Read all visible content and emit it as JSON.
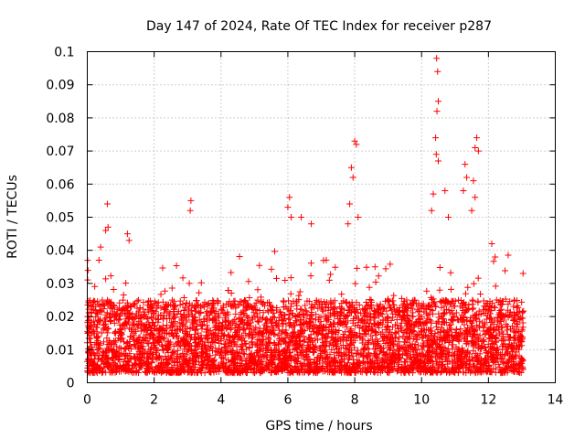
{
  "chart_data": {
    "type": "scatter",
    "title": "Day 147 of 2024, Rate Of TEC Index for receiver p287",
    "xlabel": "GPS time / hours",
    "ylabel": "ROTI / TECUs",
    "xlim": [
      0,
      14
    ],
    "ylim": [
      0,
      0.1
    ],
    "x_ticks": [
      0,
      2,
      4,
      6,
      8,
      10,
      12,
      14
    ],
    "x_tick_labels": [
      "0",
      "2",
      "4",
      "6",
      "8",
      "10",
      "12",
      "14"
    ],
    "y_ticks": [
      0,
      0.01,
      0.02,
      0.03,
      0.04,
      0.05,
      0.06,
      0.07,
      0.08,
      0.09,
      0.1
    ],
    "y_tick_labels": [
      "0",
      "0.01",
      "0.02",
      "0.03",
      "0.04",
      "0.05",
      "0.06",
      "0.07",
      "0.08",
      "0.09",
      "0.1"
    ],
    "grid": true,
    "marker": "+",
    "color": "#ff0000",
    "series": [
      {
        "name": "ROTI",
        "x_range": [
          0.0,
          13.05
        ],
        "bulk_band": [
          0.003,
          0.025
        ],
        "notable_points": [
          {
            "x": 0.6,
            "y": 0.054
          },
          {
            "x": 0.62,
            "y": 0.047
          },
          {
            "x": 0.55,
            "y": 0.046
          },
          {
            "x": 0.4,
            "y": 0.041
          },
          {
            "x": 0.35,
            "y": 0.037
          },
          {
            "x": 1.2,
            "y": 0.045
          },
          {
            "x": 1.25,
            "y": 0.043
          },
          {
            "x": 3.1,
            "y": 0.055
          },
          {
            "x": 3.08,
            "y": 0.052
          },
          {
            "x": 6.05,
            "y": 0.056
          },
          {
            "x": 6.0,
            "y": 0.053
          },
          {
            "x": 6.1,
            "y": 0.05
          },
          {
            "x": 6.4,
            "y": 0.05
          },
          {
            "x": 6.7,
            "y": 0.048
          },
          {
            "x": 7.9,
            "y": 0.065
          },
          {
            "x": 7.95,
            "y": 0.062
          },
          {
            "x": 8.0,
            "y": 0.073
          },
          {
            "x": 8.05,
            "y": 0.072
          },
          {
            "x": 7.85,
            "y": 0.054
          },
          {
            "x": 8.1,
            "y": 0.05
          },
          {
            "x": 7.8,
            "y": 0.048
          },
          {
            "x": 10.45,
            "y": 0.098
          },
          {
            "x": 10.48,
            "y": 0.094
          },
          {
            "x": 10.5,
            "y": 0.085
          },
          {
            "x": 10.46,
            "y": 0.082
          },
          {
            "x": 10.42,
            "y": 0.074
          },
          {
            "x": 10.44,
            "y": 0.069
          },
          {
            "x": 10.5,
            "y": 0.067
          },
          {
            "x": 10.35,
            "y": 0.057
          },
          {
            "x": 10.3,
            "y": 0.052
          },
          {
            "x": 10.7,
            "y": 0.058
          },
          {
            "x": 10.8,
            "y": 0.05
          },
          {
            "x": 11.3,
            "y": 0.066
          },
          {
            "x": 11.35,
            "y": 0.062
          },
          {
            "x": 11.25,
            "y": 0.058
          },
          {
            "x": 11.65,
            "y": 0.074
          },
          {
            "x": 11.6,
            "y": 0.071
          },
          {
            "x": 11.7,
            "y": 0.07
          },
          {
            "x": 11.55,
            "y": 0.061
          },
          {
            "x": 11.6,
            "y": 0.056
          },
          {
            "x": 11.5,
            "y": 0.052
          },
          {
            "x": 12.1,
            "y": 0.042
          },
          {
            "x": 12.2,
            "y": 0.038
          }
        ]
      }
    ]
  }
}
